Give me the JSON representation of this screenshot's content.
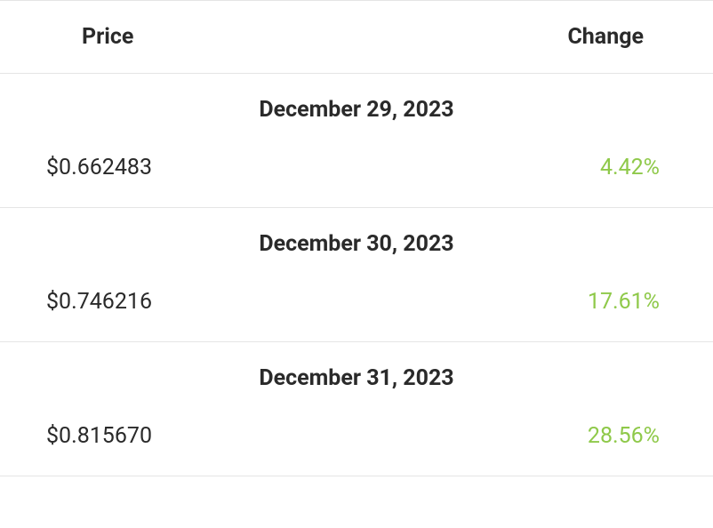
{
  "table": {
    "headers": {
      "price": "Price",
      "change": "Change"
    },
    "rows": [
      {
        "date": "December 29, 2023",
        "price": "$0.662483",
        "change": "4.42%",
        "change_color": "#8fc94a"
      },
      {
        "date": "December 30, 2023",
        "price": "$0.746216",
        "change": "17.61%",
        "change_color": "#8fc94a"
      },
      {
        "date": "December 31, 2023",
        "price": "$0.815670",
        "change": "28.56%",
        "change_color": "#8fc94a"
      }
    ]
  },
  "styling": {
    "background_color": "#ffffff",
    "text_color": "#2a2a2a",
    "border_color": "#e5e5e5",
    "positive_change_color": "#8fc94a",
    "header_fontsize": 25,
    "body_fontsize": 25,
    "header_fontweight": 700,
    "date_fontweight": 700
  }
}
